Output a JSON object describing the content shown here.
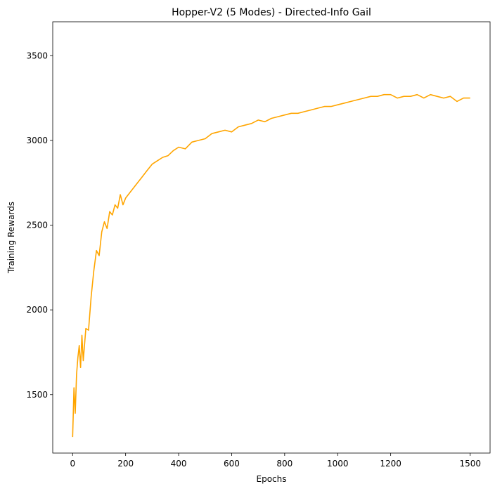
{
  "chart_data": {
    "type": "line",
    "title": "Hopper-V2 (5 Modes) - Directed-Info Gail",
    "xlabel": "Epochs",
    "ylabel": "Training Rewards",
    "xlim": [
      -75,
      1575
    ],
    "ylim": [
      1155,
      3700
    ],
    "xticks": [
      0,
      200,
      400,
      600,
      800,
      1000,
      1200,
      1500
    ],
    "yticks": [
      1500,
      2000,
      2500,
      3000,
      3500
    ],
    "grid": false,
    "line_color": "#ffa500",
    "series": [
      {
        "x": [
          0,
          5,
          10,
          15,
          20,
          25,
          30,
          35,
          40,
          50,
          60,
          70,
          80,
          90,
          100,
          110,
          120,
          130,
          140,
          150,
          160,
          170,
          180,
          190,
          200,
          220,
          240,
          260,
          280,
          300,
          320,
          340,
          360,
          380,
          400,
          425,
          450,
          475,
          500,
          525,
          550,
          575,
          600,
          625,
          650,
          675,
          700,
          725,
          750,
          775,
          800,
          825,
          850,
          875,
          900,
          925,
          950,
          975,
          1000,
          1025,
          1050,
          1075,
          1100,
          1125,
          1150,
          1175,
          1200,
          1225,
          1250,
          1275,
          1300,
          1325,
          1350,
          1375,
          1400,
          1425,
          1450,
          1475,
          1500
        ],
        "values": [
          1250,
          1540,
          1390,
          1620,
          1720,
          1790,
          1660,
          1850,
          1700,
          1890,
          1880,
          2080,
          2230,
          2350,
          2320,
          2460,
          2520,
          2480,
          2580,
          2560,
          2620,
          2600,
          2680,
          2620,
          2660,
          2700,
          2740,
          2780,
          2820,
          2860,
          2880,
          2900,
          2910,
          2940,
          2960,
          2950,
          2990,
          3000,
          3010,
          3040,
          3050,
          3060,
          3050,
          3080,
          3090,
          3100,
          3120,
          3110,
          3130,
          3140,
          3150,
          3160,
          3160,
          3170,
          3180,
          3190,
          3200,
          3200,
          3210,
          3220,
          3230,
          3240,
          3250,
          3260,
          3260,
          3270,
          3270,
          3250,
          3260,
          3260,
          3270,
          3250,
          3270,
          3260,
          3250,
          3260,
          3230,
          3250,
          3250
        ]
      }
    ]
  }
}
